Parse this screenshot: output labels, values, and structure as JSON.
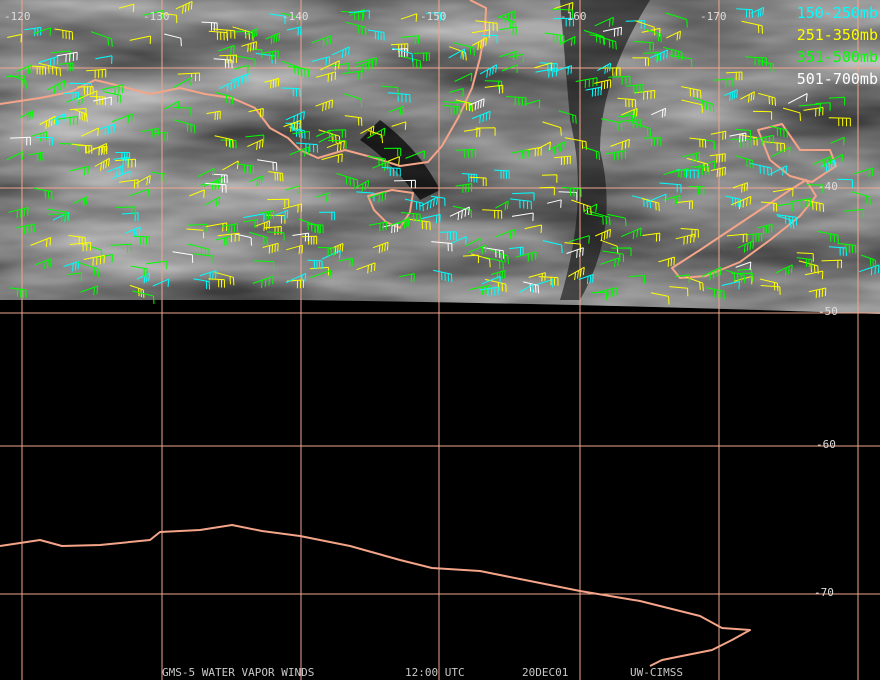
{
  "map": {
    "longitude_labels": [
      "-120",
      "-130",
      "-140",
      "-150",
      "-160",
      "-170"
    ],
    "latitude_labels": [
      "-40",
      "-50",
      "-60",
      "-70"
    ],
    "legend": [
      "150-250mb",
      "251-350mb",
      "351-500mb",
      "501-700mb"
    ],
    "footer": [
      "GMS-5 WATER VAPOR WINDS",
      "12:00 UTC",
      "20DEC01",
      "UW-CIMSS"
    ]
  }
}
